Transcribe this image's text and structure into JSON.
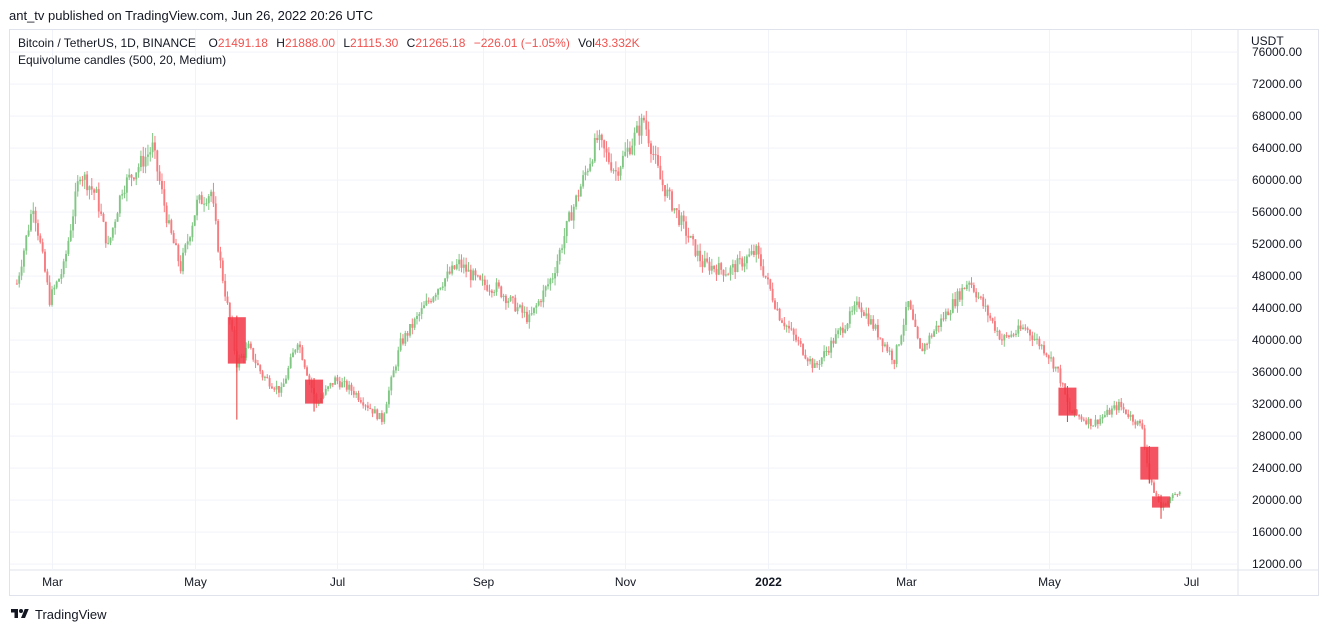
{
  "header": {
    "publish_line": "ant_tv published on TradingView.com, Jun 26, 2022 20:26 UTC"
  },
  "legend": {
    "symbol": "Bitcoin / TetherUS, 1D, BINANCE",
    "o_key": "O",
    "o_val": "21491.18",
    "h_key": "H",
    "h_val": "21888.00",
    "l_key": "L",
    "l_val": "21115.30",
    "c_key": "C",
    "c_val": "21265.18",
    "change": "−226.01 (−1.05%)",
    "vol_key": "Vol",
    "vol_val": "43.332K",
    "indicator": "Equivolume candles (500, 20, Medium)"
  },
  "footer": {
    "brand": "TradingView"
  },
  "colors": {
    "up": "#81c784",
    "down": "#f77c80",
    "up_wick": "#388e3c",
    "down_wick": "#e53935",
    "grid": "#f0f3fa",
    "axis_text": "#131722",
    "border": "#e0e3eb"
  },
  "chart_data": {
    "type": "candlestick",
    "y_axis_label": "USDT",
    "ylim": [
      11200,
      78700
    ],
    "y_ticks": [
      "76000.00",
      "72000.00",
      "68000.00",
      "64000.00",
      "60000.00",
      "56000.00",
      "52000.00",
      "48000.00",
      "44000.00",
      "40000.00",
      "36000.00",
      "32000.00",
      "28000.00",
      "24000.00",
      "20000.00",
      "16000.00",
      "12000.00"
    ],
    "x_ticks": [
      "Mar",
      "May",
      "Jul",
      "Sep",
      "Nov",
      "2022",
      "Mar",
      "May",
      "Jul"
    ],
    "x_ticks_bold": [
      false,
      false,
      false,
      false,
      false,
      true,
      false,
      false,
      false
    ],
    "grid": true,
    "price_path": [
      [
        "2021-02-14",
        47000
      ],
      [
        "2021-02-21",
        57000
      ],
      [
        "2021-02-28",
        45000
      ],
      [
        "2021-03-06",
        49000
      ],
      [
        "2021-03-13",
        61000
      ],
      [
        "2021-03-20",
        58000
      ],
      [
        "2021-03-25",
        51500
      ],
      [
        "2021-03-31",
        59000
      ],
      [
        "2021-04-13",
        64000
      ],
      [
        "2021-04-20",
        54000
      ],
      [
        "2021-04-25",
        49000
      ],
      [
        "2021-05-02",
        57000
      ],
      [
        "2021-05-08",
        58500
      ],
      [
        "2021-05-12",
        49500
      ],
      [
        "2021-05-19",
        37000
      ],
      [
        "2021-05-24",
        39000
      ],
      [
        "2021-05-30",
        35500
      ],
      [
        "2021-06-07",
        33500
      ],
      [
        "2021-06-14",
        40000
      ],
      [
        "2021-06-22",
        32000
      ],
      [
        "2021-06-30",
        35000
      ],
      [
        "2021-07-08",
        33500
      ],
      [
        "2021-07-20",
        30000
      ],
      [
        "2021-07-28",
        39500
      ],
      [
        "2021-08-07",
        44000
      ],
      [
        "2021-08-14",
        47000
      ],
      [
        "2021-08-22",
        49500
      ],
      [
        "2021-08-31",
        47000
      ],
      [
        "2021-09-07",
        46500
      ],
      [
        "2021-09-21",
        42500
      ],
      [
        "2021-10-01",
        48000
      ],
      [
        "2021-10-08",
        55000
      ],
      [
        "2021-10-20",
        65000
      ],
      [
        "2021-10-28",
        61000
      ],
      [
        "2021-11-09",
        67500
      ],
      [
        "2021-11-16",
        60000
      ],
      [
        "2021-11-26",
        54000
      ],
      [
        "2021-12-04",
        49500
      ],
      [
        "2021-12-15",
        48500
      ],
      [
        "2021-12-27",
        51000
      ],
      [
        "2022-01-06",
        43000
      ],
      [
        "2022-01-21",
        36500
      ],
      [
        "2022-02-09",
        44500
      ],
      [
        "2022-02-24",
        37500
      ],
      [
        "2022-03-02",
        44500
      ],
      [
        "2022-03-07",
        38500
      ],
      [
        "2022-03-28",
        47500
      ],
      [
        "2022-04-11",
        40000
      ],
      [
        "2022-04-21",
        41500
      ],
      [
        "2022-04-30",
        38500
      ],
      [
        "2022-05-05",
        36000
      ],
      [
        "2022-05-10",
        31000
      ],
      [
        "2022-05-20",
        29500
      ],
      [
        "2022-05-31",
        31800
      ],
      [
        "2022-06-10",
        29000
      ],
      [
        "2022-06-13",
        22500
      ],
      [
        "2022-06-18",
        19000
      ],
      [
        "2022-06-26",
        21265
      ]
    ],
    "big_candles": [
      {
        "date": "2021-05-19",
        "open": 42800,
        "high": 43000,
        "low": 30000,
        "close": 37000
      },
      {
        "date": "2021-06-21",
        "open": 35000,
        "high": 35200,
        "low": 31000,
        "close": 32000
      },
      {
        "date": "2022-05-09",
        "open": 34000,
        "high": 34200,
        "low": 29700,
        "close": 30500
      },
      {
        "date": "2022-06-13",
        "open": 26600,
        "high": 26700,
        "low": 22000,
        "close": 22500
      },
      {
        "date": "2022-06-18",
        "open": 20400,
        "high": 20600,
        "low": 17600,
        "close": 19000
      }
    ]
  }
}
